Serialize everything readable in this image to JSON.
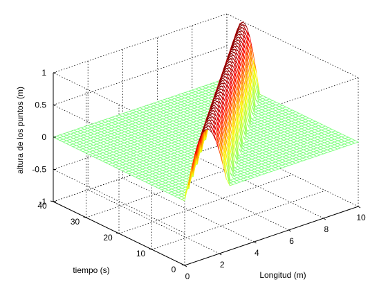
{
  "chart_data": {
    "type": "surface",
    "title": "",
    "xlabel": "Longitud (m)",
    "ylabel": "tiempo (s)",
    "zlabel": "altura de los puntos (m)",
    "xlim": [
      0,
      10
    ],
    "ylim": [
      0,
      40
    ],
    "zlim": [
      -1,
      1
    ],
    "xticks": [
      "0",
      "2",
      "4",
      "6",
      "8",
      "10"
    ],
    "yticks": [
      "0",
      "10",
      "20",
      "30",
      "40"
    ],
    "zticks": [
      "-1",
      "-0.5",
      "0",
      "0.5",
      "1"
    ],
    "grid": true,
    "box": "full",
    "colormap": "jet",
    "function": "z = sin(pi * (x - 0.25*t) / 2.5) where 0 <= x - 0.25*t < 2.5; 0 elsewhere",
    "legend": null
  }
}
